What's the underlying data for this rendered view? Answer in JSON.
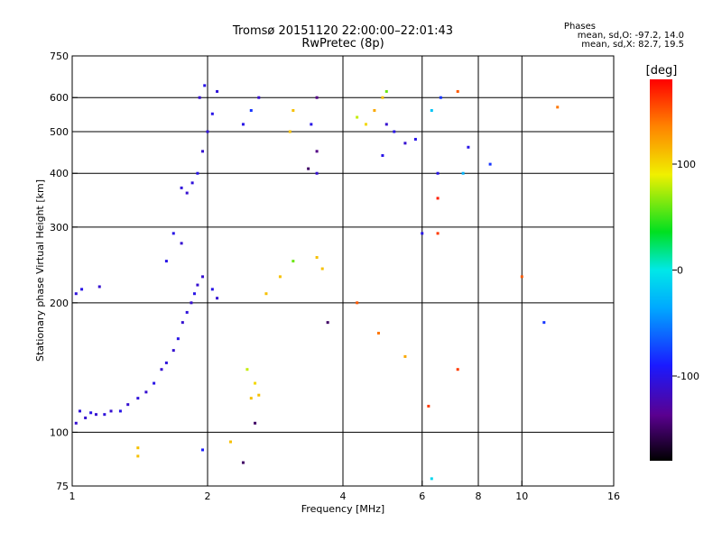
{
  "title": "Tromsø 20151120 22:00:00–22:01:43",
  "subtitle": "RwPretec (8p)",
  "phases": {
    "heading": "Phases",
    "line_o": "mean, sd,O: -97.2, 14.0",
    "line_x": "mean, sd,X: 82.7, 19.5"
  },
  "chart_data": {
    "type": "scatter",
    "x_scale": "log",
    "y_scale": "log",
    "xlabel": "Frequency [MHz]",
    "ylabel": "Stationary phase Virtual Height [km]",
    "xlim": [
      1,
      16
    ],
    "ylim": [
      75,
      750
    ],
    "x_gridlines": [
      2,
      4,
      6,
      8,
      10
    ],
    "y_gridlines": [
      100,
      200,
      300,
      400,
      500,
      600
    ],
    "x_ticks": [
      {
        "value": 1,
        "label": "1"
      },
      {
        "value": 2,
        "label": "2"
      },
      {
        "value": 4,
        "label": "4"
      },
      {
        "value": 6,
        "label": "6"
      },
      {
        "value": 8,
        "label": "8"
      },
      {
        "value": 10,
        "label": "10"
      },
      {
        "value": 16,
        "label": "16"
      }
    ],
    "y_ticks": [
      {
        "value": 75,
        "label": "75"
      },
      {
        "value": 100,
        "label": "100"
      },
      {
        "value": 200,
        "label": "200"
      },
      {
        "value": 300,
        "label": "300"
      },
      {
        "value": 400,
        "label": "400"
      },
      {
        "value": 500,
        "label": "500"
      },
      {
        "value": 600,
        "label": "600"
      },
      {
        "value": 750,
        "label": "750"
      }
    ],
    "colorbar": {
      "unit": "[deg]",
      "range": [
        -180,
        180
      ],
      "ticks": [
        {
          "value": 100,
          "label": "100"
        },
        {
          "value": 0,
          "label": "0"
        },
        {
          "value": -100,
          "label": "-100"
        }
      ]
    },
    "points": [
      [
        1.02,
        105,
        -110
      ],
      [
        1.04,
        112,
        -105
      ],
      [
        1.07,
        108,
        -110
      ],
      [
        1.1,
        111,
        -100
      ],
      [
        1.13,
        110,
        -110
      ],
      [
        1.18,
        110,
        -105
      ],
      [
        1.22,
        112,
        -110
      ],
      [
        1.28,
        112,
        -100
      ],
      [
        1.33,
        116,
        -110
      ],
      [
        1.4,
        120,
        -105
      ],
      [
        1.46,
        124,
        -110
      ],
      [
        1.52,
        130,
        -100
      ],
      [
        1.58,
        140,
        -110
      ],
      [
        1.62,
        145,
        -105
      ],
      [
        1.68,
        155,
        -110
      ],
      [
        1.72,
        165,
        -100
      ],
      [
        1.76,
        180,
        -110
      ],
      [
        1.8,
        190,
        -105
      ],
      [
        1.84,
        200,
        -110
      ],
      [
        1.87,
        210,
        -100
      ],
      [
        1.9,
        220,
        -110
      ],
      [
        1.02,
        210,
        -105
      ],
      [
        1.05,
        215,
        -100
      ],
      [
        1.15,
        218,
        -110
      ],
      [
        1.68,
        290,
        -100
      ],
      [
        1.75,
        275,
        -110
      ],
      [
        1.62,
        250,
        -100
      ],
      [
        1.95,
        230,
        -110
      ],
      [
        2.05,
        215,
        -100
      ],
      [
        2.1,
        205,
        -110
      ],
      [
        1.85,
        380,
        -105
      ],
      [
        1.9,
        400,
        -100
      ],
      [
        1.95,
        450,
        -110
      ],
      [
        2.0,
        500,
        -105
      ],
      [
        2.05,
        550,
        -100
      ],
      [
        1.8,
        360,
        -110
      ],
      [
        1.75,
        370,
        -105
      ],
      [
        1.92,
        600,
        -110
      ],
      [
        1.97,
        640,
        -100
      ],
      [
        2.1,
        620,
        -105
      ],
      [
        2.4,
        520,
        -100
      ],
      [
        2.5,
        560,
        -80
      ],
      [
        2.6,
        600,
        -110
      ],
      [
        3.1,
        560,
        110
      ],
      [
        3.05,
        500,
        110
      ],
      [
        3.5,
        600,
        -140
      ],
      [
        3.4,
        520,
        -100
      ],
      [
        3.5,
        450,
        -140
      ],
      [
        3.5,
        400,
        -110
      ],
      [
        3.35,
        410,
        -150
      ],
      [
        4.3,
        540,
        80
      ],
      [
        4.5,
        520,
        100
      ],
      [
        4.7,
        560,
        120
      ],
      [
        4.9,
        600,
        110
      ],
      [
        5.0,
        520,
        -110
      ],
      [
        5.2,
        500,
        -100
      ],
      [
        5.5,
        470,
        -110
      ],
      [
        5.8,
        480,
        -100
      ],
      [
        5.0,
        620,
        60
      ],
      [
        6.3,
        560,
        -20
      ],
      [
        2.5,
        120,
        110
      ],
      [
        2.6,
        122,
        110
      ],
      [
        2.55,
        130,
        100
      ],
      [
        2.45,
        140,
        80
      ],
      [
        2.9,
        230,
        110
      ],
      [
        3.1,
        250,
        60
      ],
      [
        3.5,
        255,
        110
      ],
      [
        3.6,
        240,
        110
      ],
      [
        2.7,
        210,
        110
      ],
      [
        6.0,
        290,
        -100
      ],
      [
        6.5,
        290,
        160
      ],
      [
        7.2,
        620,
        150
      ],
      [
        10,
        230,
        150
      ],
      [
        12,
        570,
        140
      ],
      [
        11.2,
        180,
        -80
      ],
      [
        6.2,
        115,
        160
      ],
      [
        7.2,
        140,
        160
      ],
      [
        5.5,
        150,
        120
      ],
      [
        4.8,
        170,
        140
      ],
      [
        4.3,
        200,
        150
      ],
      [
        6.3,
        78,
        -10
      ],
      [
        1.4,
        92,
        110
      ],
      [
        1.4,
        88,
        110
      ],
      [
        2.25,
        95,
        110
      ],
      [
        2.4,
        85,
        -150
      ],
      [
        1.95,
        91,
        -90
      ],
      [
        2.55,
        105,
        -150
      ],
      [
        3.7,
        180,
        -150
      ],
      [
        6.5,
        350,
        170
      ],
      [
        6.5,
        400,
        -100
      ],
      [
        8.5,
        420,
        -80
      ],
      [
        7.6,
        460,
        -100
      ],
      [
        6.6,
        600,
        -80
      ],
      [
        7.4,
        400,
        -30
      ],
      [
        4.9,
        440,
        -100
      ]
    ]
  }
}
